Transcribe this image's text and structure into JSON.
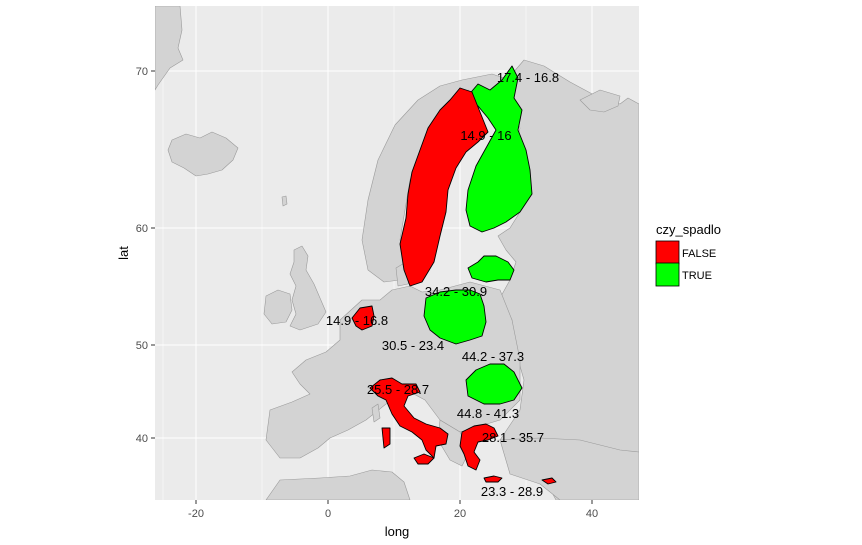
{
  "chart_data": {
    "type": "map",
    "xlabel": "long",
    "ylabel": "lat",
    "x_ticks": [
      -20,
      0,
      20,
      40
    ],
    "y_ticks": [
      40,
      50,
      60,
      70
    ],
    "xlim": [
      -25,
      47
    ],
    "ylim": [
      34,
      74
    ],
    "grid": true,
    "legend": {
      "title": "czy_spadlo",
      "position": "right",
      "entries": [
        {
          "label": "FALSE",
          "color": "#ff0000"
        },
        {
          "label": "TRUE",
          "color": "#00ff00"
        }
      ]
    },
    "colors": {
      "panel": "#ebebeb",
      "land": "#d3d3d3",
      "grid": "#ffffff",
      "false": "#ff0000",
      "true": "#00ff00"
    },
    "regions": [
      {
        "name": "Finland",
        "status": "TRUE",
        "label": "17.4 - 16.8"
      },
      {
        "name": "Sweden",
        "status": "FALSE",
        "label": "14.9 - 16"
      },
      {
        "name": "Lithuania",
        "status": "TRUE",
        "label": ""
      },
      {
        "name": "Poland",
        "status": "TRUE",
        "label": "34.2 - 30.9"
      },
      {
        "name": "Netherlands",
        "status": "FALSE",
        "label": "14.9 - 16.8"
      },
      {
        "name": "Czechia",
        "status": "",
        "label": "30.5 - 23.4"
      },
      {
        "name": "Romania",
        "status": "TRUE",
        "label": "44.2 - 37.3"
      },
      {
        "name": "Italy",
        "status": "FALSE",
        "label": "25.5 - 28.7"
      },
      {
        "name": "Bulgaria",
        "status": "",
        "label": "44.8 - 41.3"
      },
      {
        "name": "Greece",
        "status": "FALSE",
        "label": "28.1 - 35.7"
      },
      {
        "name": "Cyprus",
        "status": "FALSE",
        "label": "23.3 - 28.9"
      }
    ]
  }
}
